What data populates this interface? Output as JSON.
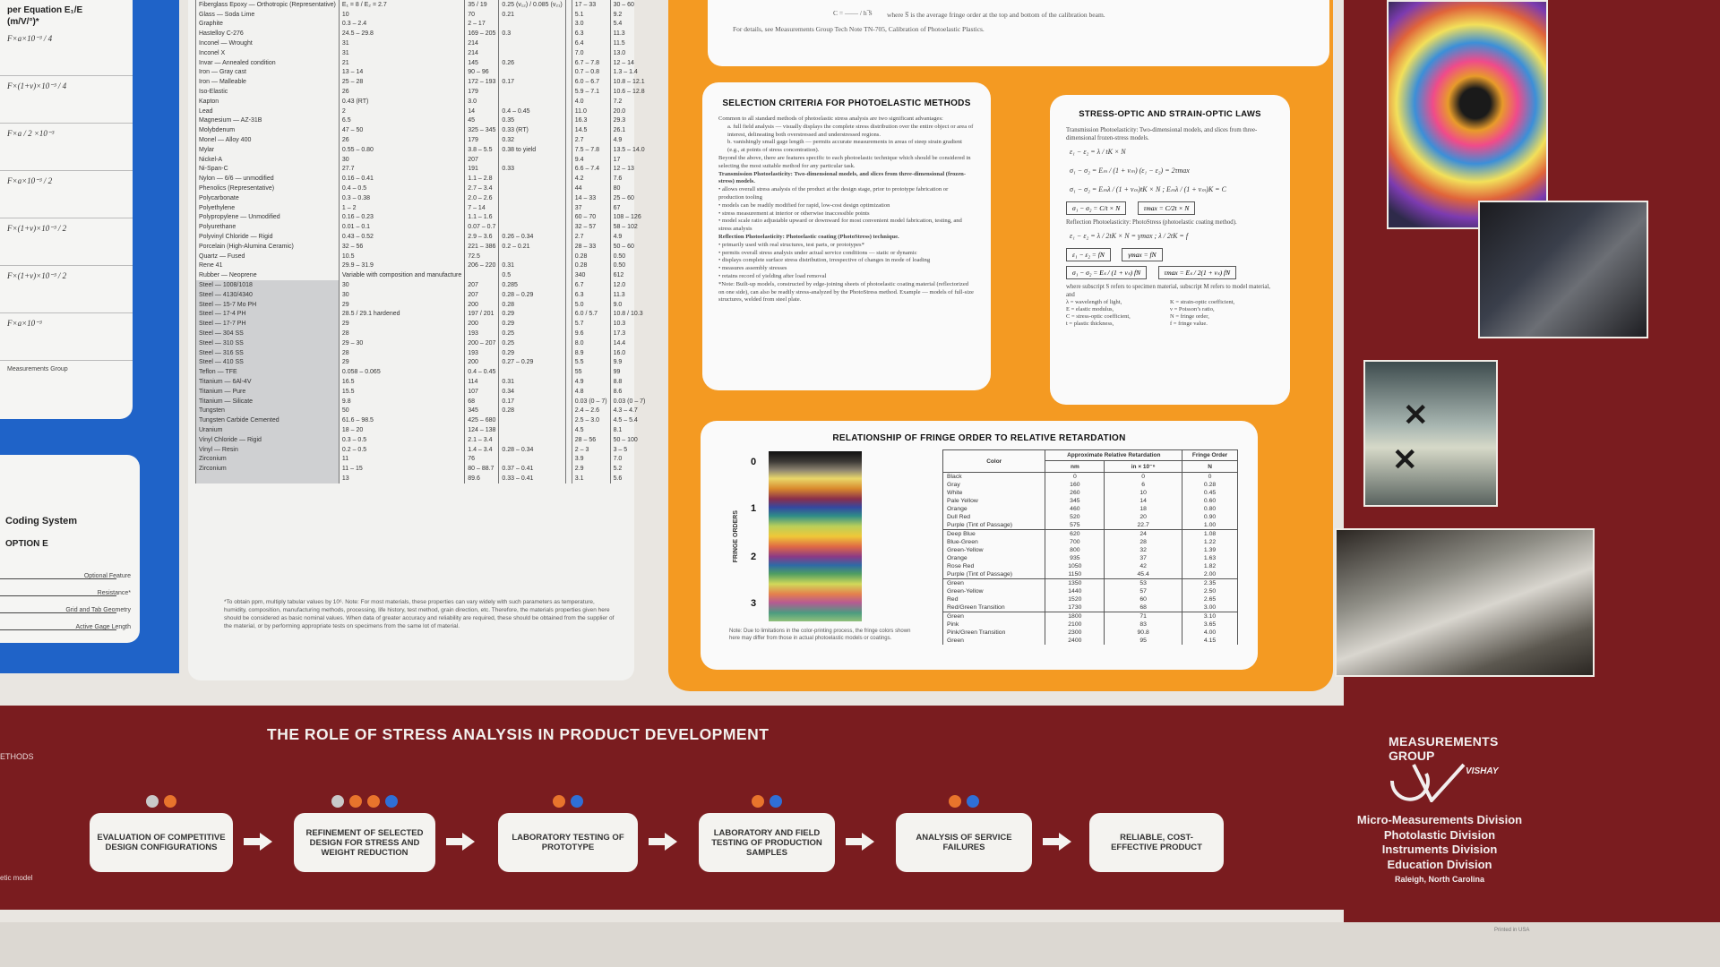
{
  "left_column": {
    "formula_header": "per Equation E₁/E",
    "formula_subheader": "(m/V/°)*",
    "formulas": [
      "F×a×10⁻³ / 4",
      "F×(1+v)×10⁻³ / 4",
      "F×a / 2 ×10⁻³",
      "F×a×10⁻³ / 2",
      "F×(1+v)×10⁻³ / 2",
      "F×(1+v)×10⁻³ / 2",
      "F×a×10⁻³"
    ],
    "formula_note": "Measurements Group",
    "coding_title": "Coding System",
    "coding_option": "OPTION E",
    "coding_labels": [
      "Optional Feature",
      "Resistance*",
      "Grid and Tab Geometry",
      "Active Gage Length"
    ],
    "band_left_1": "ETHODS",
    "band_left_2": "etic model"
  },
  "materials_table": {
    "rows": [
      [
        "Fiberglass Epoxy — Orthotropic (Representative)",
        "E₁ = 8 / E₂ = 2.7",
        "35 / 19",
        "0.25 (v₁₂) / 0.085 (v₂₁)",
        "",
        "17 – 33",
        "30 – 60"
      ],
      [
        "Glass — Soda Lime",
        "10",
        "70",
        "0.21",
        "",
        "5.1",
        "9.2"
      ],
      [
        "Graphite",
        "0.3 – 2.4",
        "2 – 17",
        "",
        "",
        "3.0",
        "5.4"
      ],
      [
        "Hastelloy C-276",
        "24.5 – 29.8",
        "169 – 205",
        "0.3",
        "",
        "6.3",
        "11.3"
      ],
      [
        "Inconel — Wrought",
        "31",
        "214",
        "",
        "",
        "6.4",
        "11.5"
      ],
      [
        "Inconel X",
        "31",
        "214",
        "",
        "",
        "7.0",
        "13.0"
      ],
      [
        "Invar — Annealed condition",
        "21",
        "145",
        "0.26",
        "",
        "6.7 – 7.8",
        "12 – 14"
      ],
      [
        "Iron — Gray cast",
        "13 – 14",
        "90 – 96",
        "",
        "",
        "0.7 – 0.8",
        "1.3 – 1.4"
      ],
      [
        "Iron — Malleable",
        "25 – 28",
        "172 – 193",
        "0.17",
        "",
        "6.0 – 6.7",
        "10.8 – 12.1"
      ],
      [
        "Iso-Elastic",
        "26",
        "179",
        "",
        "",
        "5.9 – 7.1",
        "10.6 – 12.8"
      ],
      [
        "Kapton",
        "0.43 (RT)",
        "3.0",
        "",
        "",
        "4.0",
        "7.2"
      ],
      [
        "Lead",
        "2",
        "14",
        "0.4 – 0.45",
        "",
        "11.0",
        "20.0"
      ],
      [
        "Magnesium — AZ-31B",
        "6.5",
        "45",
        "0.35",
        "",
        "16.3",
        "29.3"
      ],
      [
        "Molybdenum",
        "47 – 50",
        "325 – 345",
        "0.33 (RT)",
        "",
        "14.5",
        "26.1"
      ],
      [
        "Monel — Alloy 400",
        "26",
        "179",
        "0.32",
        "",
        "2.7",
        "4.9"
      ],
      [
        "Mylar",
        "0.55 – 0.80",
        "3.8 – 5.5",
        "0.38 to yield",
        "",
        "7.5 – 7.8",
        "13.5 – 14.0"
      ],
      [
        "Nickel-A",
        "30",
        "207",
        "",
        "",
        "9.4",
        "17"
      ],
      [
        "Ni-Span-C",
        "27.7",
        "191",
        "0.33",
        "",
        "6.6 – 7.4",
        "12 – 13"
      ],
      [
        "Nylon — 6/6 — unmodified",
        "0.16 – 0.41",
        "1.1 – 2.8",
        "",
        "",
        "4.2",
        "7.6"
      ],
      [
        "Phenolics (Representative)",
        "0.4 – 0.5",
        "2.7 – 3.4",
        "",
        "",
        "44",
        "80"
      ],
      [
        "Polycarbonate",
        "0.3 – 0.38",
        "2.0 – 2.6",
        "",
        "",
        "14 – 33",
        "25 – 60"
      ],
      [
        "Polyethylene",
        "1 – 2",
        "7 – 14",
        "",
        "",
        "37",
        "67"
      ],
      [
        "Polypropylene — Unmodified",
        "0.16 – 0.23",
        "1.1 – 1.6",
        "",
        "",
        "60 – 70",
        "108 – 126"
      ],
      [
        "Polyurethane",
        "0.01 – 0.1",
        "0.07 – 0.7",
        "",
        "",
        "32 – 57",
        "58 – 102"
      ],
      [
        "Polyvinyl Chloride — Rigid",
        "0.43 – 0.52",
        "2.9 – 3.6",
        "0.26 – 0.34",
        "",
        "2.7",
        "4.9"
      ],
      [
        "Porcelain (High-Alumina Ceramic)",
        "32 – 56",
        "221 – 386",
        "0.2 – 0.21",
        "",
        "28 – 33",
        "50 – 60"
      ],
      [
        "Quartz — Fused",
        "10.5",
        "72.5",
        "",
        "",
        "0.28",
        "0.50"
      ],
      [
        "Rene 41",
        "29.9 – 31.9",
        "206 – 220",
        "0.31",
        "",
        "0.28",
        "0.50"
      ],
      [
        "Rubber — Neoprene",
        "Variable with composition and manufacture",
        "",
        "0.5",
        "",
        "340",
        "612"
      ],
      [
        "Steel — 1008/1018",
        "30",
        "207",
        "0.285",
        "",
        "6.7",
        "12.0"
      ],
      [
        "Steel — 4130/4340",
        "30",
        "207",
        "0.28 – 0.29",
        "",
        "6.3",
        "11.3"
      ],
      [
        "Steel — 15-7 Mo PH",
        "29",
        "200",
        "0.28",
        "",
        "5.0",
        "9.0"
      ],
      [
        "Steel — 17-4 PH",
        "28.5 / 29.1 hardened",
        "197 / 201",
        "0.29",
        "",
        "6.0 / 5.7",
        "10.8 / 10.3"
      ],
      [
        "Steel — 17-7 PH",
        "29",
        "200",
        "0.29",
        "",
        "5.7",
        "10.3"
      ],
      [
        "Steel — 304 SS",
        "28",
        "193",
        "0.25",
        "",
        "9.6",
        "17.3"
      ],
      [
        "Steel — 310 SS",
        "29 – 30",
        "200 – 207",
        "0.25",
        "",
        "8.0",
        "14.4"
      ],
      [
        "Steel — 316 SS",
        "28",
        "193",
        "0.29",
        "",
        "8.9",
        "16.0"
      ],
      [
        "Steel — 410 SS",
        "29",
        "200",
        "0.27 – 0.29",
        "",
        "5.5",
        "9.9"
      ],
      [
        "Teflon — TFE",
        "0.058 – 0.065",
        "0.4 – 0.45",
        "",
        "",
        "55",
        "99"
      ],
      [
        "Titanium — 6Al-4V",
        "16.5",
        "114",
        "0.31",
        "",
        "4.9",
        "8.8"
      ],
      [
        "Titanium — Pure",
        "15.5",
        "107",
        "0.34",
        "",
        "4.8",
        "8.6"
      ],
      [
        "Titanium — Silicate",
        "9.8",
        "68",
        "0.17",
        "",
        "0.03 (0 – 7)",
        "0.03 (0 – 7)"
      ],
      [
        "Tungsten",
        "50",
        "345",
        "0.28",
        "",
        "2.4 – 2.6",
        "4.3 – 4.7"
      ],
      [
        "Tungsten Carbide Cemented",
        "61.6 – 98.5",
        "425 – 680",
        "",
        "",
        "2.5 – 3.0",
        "4.5 – 5.4"
      ],
      [
        "Uranium",
        "18 – 20",
        "124 – 138",
        "",
        "",
        "4.5",
        "8.1"
      ],
      [
        "Vinyl Chloride — Rigid",
        "0.3 – 0.5",
        "2.1 – 3.4",
        "",
        "",
        "28 – 56",
        "50 – 100"
      ],
      [
        "Vinyl — Resin",
        "0.2 – 0.5",
        "1.4 – 3.4",
        "0.28 – 0.34",
        "",
        "2 – 3",
        "3 – 5"
      ],
      [
        "Zirconium",
        "11",
        "76",
        "",
        "",
        "3.9",
        "7.0"
      ],
      [
        "Zirconium",
        "11 – 15",
        "80 – 88.7",
        "0.37 – 0.41",
        "",
        "2.9",
        "5.2"
      ],
      [
        "",
        "13",
        "89.6",
        "0.33 – 0.41",
        "",
        "3.1",
        "5.6"
      ]
    ],
    "note": "*To obtain ppm, multiply tabular values by 10⁶. Note: For most materials, these properties can vary widely with such parameters as temperature, humidity, composition, manufacturing methods, processing, life history, test method, grain direction, etc. Therefore, the materials properties given here should be considered as basic nominal values. When data of greater accuracy and reliability are required, these should be obtained from the supplier of the material, or by performing appropriate tests on specimens from the same lot of material."
  },
  "top_white": {
    "formula": "C = —— / h ̅S",
    "caption_1": "where S̅ is the average fringe order at the top and bottom of the calibration beam.",
    "caption_2": "For details, see Measurements Group Tech Note TN-705, Calibration of Photoelastic Plastics."
  },
  "selection": {
    "title": "SELECTION CRITERIA FOR PHOTOELASTIC METHODS",
    "intro": "Common to all standard methods of photoelastic stress analysis are two significant advantages:",
    "a": "a. full field analysis — visually displays the complete stress distribution over the entire object or area of interest, delineating both overstressed and understressed regions.",
    "b": "b. vanishingly small gage length — permits accurate measurements in areas of steep strain gradient (e.g., at points of stress concentration).",
    "beyond": "Beyond the above, there are features specific to each photoelastic technique which should be considered in selecting the most suitable method for any particular task.",
    "trans_head": "Transmission Photoelasticity: Two-dimensional models, and slices from three-dimensional (frozen-stress) models.",
    "trans_items": [
      "allows overall stress analysis of the product at the design stage, prior to prototype fabrication or production tooling",
      "models can be readily modified for rapid, low-cost design optimization",
      "stress measurement at interior or otherwise inaccessible points",
      "model scale ratio adjustable upward or downward for most convenient model fabrication, testing, and stress analysis"
    ],
    "refl_head": "Reflection Photoelasticity: Photoelastic coating (PhotoStress) technique.",
    "refl_items": [
      "primarily used with real structures, test parts, or prototypes*",
      "permits overall stress analysis under actual service conditions — static or dynamic",
      "displays complete surface stress distribution, irrespective of changes in mode of loading",
      "measures assembly stresses",
      "retains record of yielding after load removal"
    ],
    "note": "*Note: Built-up models, constructed by edge-joining sheets of photoelastic coating material (reflectorized on one side), can also be readily stress-analyzed by the PhotoStress method. Example — models of full-size structures, welded from steel plate."
  },
  "laws": {
    "title": "STRESS-OPTIC AND STRAIN-OPTIC LAWS",
    "trans_head": "Transmission Photoelasticity: Two-dimensional models, and slices from three-dimensional frozen-stress models.",
    "eq1": "ε₁ − ε₂ = λ / tK × N",
    "eq2": "σ₁ − σ₂ = Eₘ / (1 + νₘ) (ε₁ − ε₂) = 2τmax",
    "eq3": "σ₁ − σ₂ = Eₘλ / (1 + νₘ)tK × N ;  Eₘλ / (1 + νₘ)K = C",
    "box1": "σ₁ − σ₂ = C/t × N",
    "box2": "τmax = C/2t × N",
    "refl_head": "Reflection Photoelasticity: PhotoStress (photoelastic coating method).",
    "eq4": "ε₁ − ε₂ = λ / 2tK × N = γmax ;  λ / 2tK = f",
    "box3": "ε₁ − ε₂ = fN",
    "box4": "γmax = fN",
    "box5": "σ₁ − σ₂ = Eₛ / (1 + νₛ) fN",
    "box6": "τmax = Eₛ / 2(1 + νₛ) fN",
    "where": "where subscript S refers to specimen material, subscript M refers to model material, and",
    "defs_left": [
      "λ = wavelength of light,",
      "E = elastic modulus,",
      "C = stress-optic coefficient,",
      "t = plastic thickness,"
    ],
    "defs_right": [
      "K = strain-optic coefficient,",
      "ν = Poisson’s ratio,",
      "N = fringe order,",
      "f = fringe value."
    ]
  },
  "fringe": {
    "title": "RELATIONSHIP OF FRINGE ORDER TO RELATIVE RETARDATION",
    "axis_label": "FRINGE ORDERS",
    "orders": [
      "0",
      "1",
      "2",
      "3"
    ],
    "col_color": "Color",
    "col_retard": "Approximate Relative Retardation",
    "col_nm": "nm",
    "col_in": "in × 10⁻⁶",
    "col_order": "Fringe Order",
    "col_N": "N",
    "rows": [
      [
        "Black",
        "0",
        "0",
        "0"
      ],
      [
        "Gray",
        "160",
        "6",
        "0.28"
      ],
      [
        "White",
        "260",
        "10",
        "0.45"
      ],
      [
        "Pale Yellow",
        "345",
        "14",
        "0.60"
      ],
      [
        "Orange",
        "460",
        "18",
        "0.80"
      ],
      [
        "Dull Red",
        "520",
        "20",
        "0.90"
      ],
      [
        "Purple (Tint of Passage)",
        "575",
        "22.7",
        "1.00"
      ],
      [
        "Deep Blue",
        "620",
        "24",
        "1.08"
      ],
      [
        "Blue-Green",
        "700",
        "28",
        "1.22"
      ],
      [
        "Green-Yellow",
        "800",
        "32",
        "1.39"
      ],
      [
        "Orange",
        "935",
        "37",
        "1.63"
      ],
      [
        "Rose Red",
        "1050",
        "42",
        "1.82"
      ],
      [
        "Purple (Tint of Passage)",
        "1150",
        "45.4",
        "2.00"
      ],
      [
        "Green",
        "1350",
        "53",
        "2.35"
      ],
      [
        "Green-Yellow",
        "1440",
        "57",
        "2.50"
      ],
      [
        "Red",
        "1520",
        "60",
        "2.65"
      ],
      [
        "Red/Green Transition",
        "1730",
        "68",
        "3.00"
      ],
      [
        "Green",
        "1800",
        "71",
        "3.10"
      ],
      [
        "Pink",
        "2100",
        "83",
        "3.65"
      ],
      [
        "Pink/Green Transition",
        "2300",
        "90.8",
        "4.00"
      ],
      [
        "Green",
        "2400",
        "95",
        "4.15"
      ]
    ],
    "note": "Note: Due to limitations in the color-printing process, the fringe colors shown here may differ from those in actual photoelastic models or coatings."
  },
  "band": {
    "title": "THE ROLE OF STRESS ANALYSIS IN PRODUCT DEVELOPMENT",
    "steps": [
      "EVALUATION OF COMPETITIVE DESIGN CONFIGURATIONS",
      "REFINEMENT OF SELECTED DESIGN FOR STRESS AND WEIGHT REDUCTION",
      "LABORATORY TESTING OF PROTOTYPE",
      "LABORATORY AND FIELD TESTING OF PRODUCTION SAMPLES",
      "ANALYSIS OF SERVICE FAILURES",
      "RELIABLE, COST-EFFECTIVE PRODUCT"
    ]
  },
  "logo": {
    "line1": "MEASUREMENTS",
    "line2": "GROUP",
    "vishay": "VISHAY"
  },
  "divisions": [
    "Micro-Measurements Division",
    "Photolastic Division",
    "Instruments Division",
    "Education Division"
  ],
  "city": "Raleigh, North Carolina",
  "printed": "Printed in USA",
  "colors": {
    "orange": "#f49a22",
    "maroon": "#7a1c1f",
    "blue": "#1f63c8"
  }
}
